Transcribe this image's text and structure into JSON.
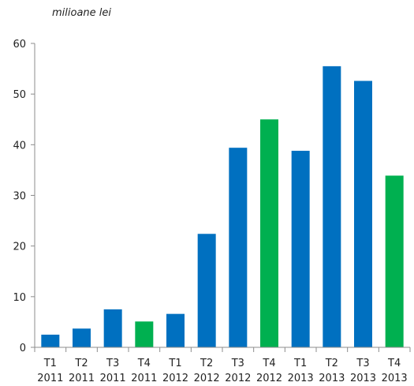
{
  "chart_data": {
    "type": "bar",
    "ylabel": "milioane lei",
    "xlabel": "",
    "ylim": [
      0,
      60
    ],
    "yticks": [
      0,
      10,
      20,
      30,
      40,
      50,
      60
    ],
    "grid": false,
    "legend": "none",
    "categories": [
      {
        "quarter": "T1",
        "year": "2011"
      },
      {
        "quarter": "T2",
        "year": "2011"
      },
      {
        "quarter": "T3",
        "year": "2011"
      },
      {
        "quarter": "T4",
        "year": "2011"
      },
      {
        "quarter": "T1",
        "year": "2012"
      },
      {
        "quarter": "T2",
        "year": "2012"
      },
      {
        "quarter": "T3",
        "year": "2012"
      },
      {
        "quarter": "T4",
        "year": "2012"
      },
      {
        "quarter": "T1",
        "year": "2013"
      },
      {
        "quarter": "T2",
        "year": "2013"
      },
      {
        "quarter": "T3",
        "year": "2013"
      },
      {
        "quarter": "T4",
        "year": "2013"
      }
    ],
    "values": [
      2.5,
      3.7,
      7.5,
      5.1,
      6.6,
      22.4,
      39.4,
      45.0,
      38.8,
      55.5,
      52.6,
      33.9
    ],
    "colors": {
      "default": "#0070C0",
      "highlight": "#00B050"
    },
    "highlight_indices": [
      3,
      7,
      11
    ]
  }
}
